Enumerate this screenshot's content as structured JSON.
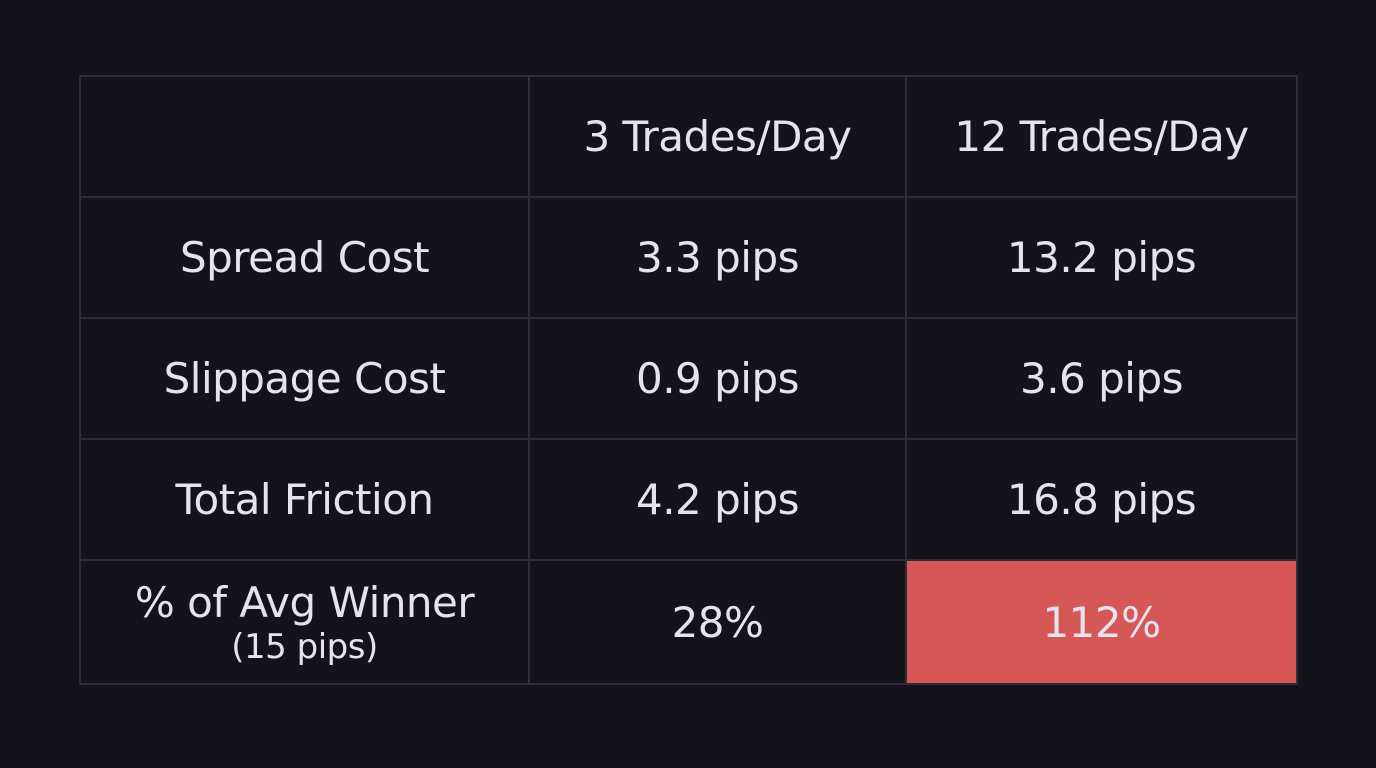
{
  "colors": {
    "background": "#141319",
    "border": "#2e2c3c",
    "header_text": "#8c6ce0",
    "body_text": "#e6e3f0",
    "highlight_cell": "#d55756"
  },
  "table": {
    "corner": "",
    "columns": [
      "3 Trades/Day",
      "12 Trades/Day"
    ],
    "rows": [
      {
        "label": "Spread Cost",
        "sublabel": "",
        "values": [
          "3.3 pips",
          "13.2 pips"
        ]
      },
      {
        "label": "Slippage Cost",
        "sublabel": "",
        "values": [
          "0.9 pips",
          "3.6 pips"
        ]
      },
      {
        "label": "Total Friction",
        "sublabel": "",
        "values": [
          "4.2 pips",
          "16.8 pips"
        ]
      },
      {
        "label": "% of Avg Winner",
        "sublabel": "(15 pips)",
        "values": [
          "28%",
          "112%"
        ]
      }
    ]
  },
  "chart_data": {
    "type": "table",
    "title": "",
    "columns": [
      "",
      "3 Trades/Day",
      "12 Trades/Day"
    ],
    "rows": [
      [
        "Spread Cost",
        "3.3 pips",
        "13.2 pips"
      ],
      [
        "Slippage Cost",
        "0.9 pips",
        "3.6 pips"
      ],
      [
        "Total Friction",
        "4.2 pips",
        "16.8 pips"
      ],
      [
        "% of Avg Winner (15 pips)",
        "28%",
        "112%"
      ]
    ],
    "numeric": {
      "3 Trades/Day": {
        "spread_cost_pips": 3.3,
        "slippage_cost_pips": 0.9,
        "total_friction_pips": 4.2,
        "pct_of_avg_winner": 28
      },
      "12 Trades/Day": {
        "spread_cost_pips": 13.2,
        "slippage_cost_pips": 3.6,
        "total_friction_pips": 16.8,
        "pct_of_avg_winner": 112
      }
    },
    "annotations": [
      "112% cell highlighted in red"
    ]
  }
}
